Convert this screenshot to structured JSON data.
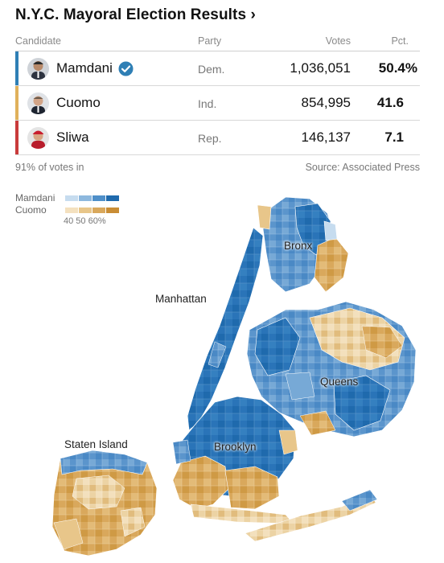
{
  "title": "N.Y.C. Mayoral Election Results ›",
  "table": {
    "headers": {
      "candidate": "Candidate",
      "party": "Party",
      "votes": "Votes",
      "pct": "Pct."
    },
    "rows": [
      {
        "name": "Mamdani",
        "party": "Dem.",
        "votes": "1,036,051",
        "pct": "50.4%",
        "color": "#2f7fb5",
        "winner": true
      },
      {
        "name": "Cuomo",
        "party": "Ind.",
        "votes": "854,995",
        "pct": "41.6",
        "color": "#e0b15b",
        "winner": false
      },
      {
        "name": "Sliwa",
        "party": "Rep.",
        "votes": "146,137",
        "pct": "7.1",
        "color": "#c93b3b",
        "winner": false
      }
    ]
  },
  "footer": {
    "reporting": "91% of votes in",
    "source": "Source: Associated Press"
  },
  "legend": {
    "mamdani_label": "Mamdani",
    "cuomo_label": "Cuomo",
    "ticks": "40 50 60%",
    "mamdani_colors": [
      "#c6dcef",
      "#8db8de",
      "#4f8fc9",
      "#1f6aad"
    ],
    "cuomo_colors": [
      "#f4e1bf",
      "#e8c68a",
      "#d9a85c",
      "#c98d35"
    ]
  },
  "map_labels": {
    "bronx": "Bronx",
    "manhattan": "Manhattan",
    "queens": "Queens",
    "brooklyn": "Brooklyn",
    "staten_island": "Staten Island"
  }
}
